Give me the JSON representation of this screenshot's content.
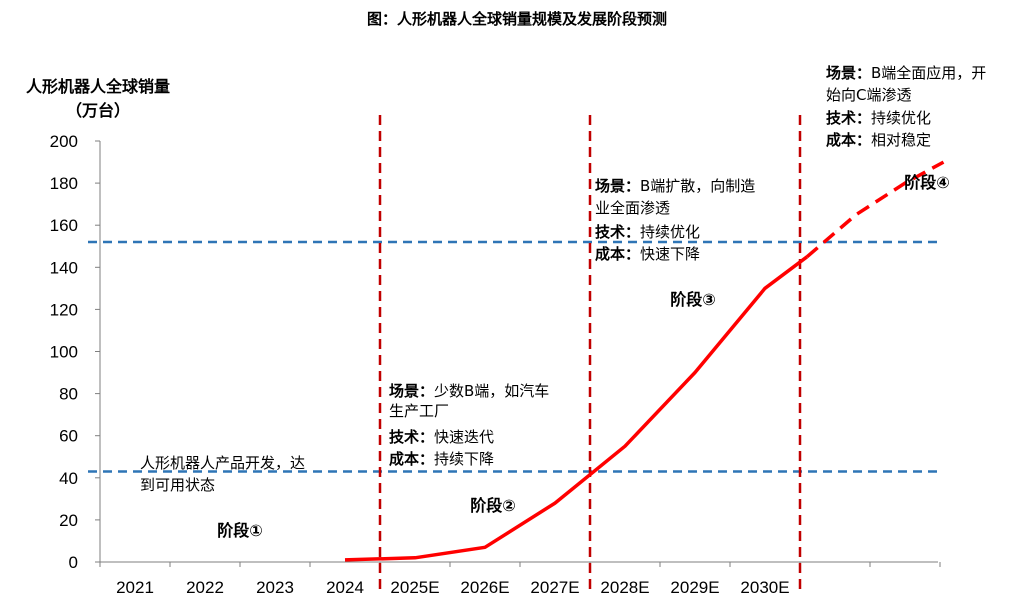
{
  "chart_data": {
    "type": "line",
    "title": "图：人形机器人全球销量规模及发展阶段预测",
    "ylabel_line1": "人形机器人全球销量",
    "ylabel_line2": "（万台）",
    "ylim": [
      0,
      200
    ],
    "yticks": [
      0,
      20,
      40,
      60,
      80,
      100,
      120,
      140,
      160,
      180,
      200
    ],
    "categories": [
      "2021",
      "2022",
      "2023",
      "2024",
      "2025E",
      "2026E",
      "2027E",
      "2028E",
      "2029E",
      "2030E"
    ],
    "series": [
      {
        "solid": {
          "x": [
            3.0,
            4.0,
            5.0,
            6.0,
            7.0,
            8.0,
            9.0,
            9.6
          ],
          "y": [
            1,
            2,
            7,
            28,
            55,
            90,
            130,
            145
          ]
        },
        "dashed": {
          "x": [
            9.6,
            10.3,
            11.0,
            11.55
          ],
          "y": [
            145,
            165,
            180,
            190
          ]
        }
      }
    ],
    "hlines": [
      {
        "value": 43,
        "color": "#2e75b6"
      },
      {
        "value": 152,
        "color": "#2e75b6"
      }
    ],
    "vlines": [
      {
        "x": 3.5,
        "color": "#c00000"
      },
      {
        "x": 6.5,
        "color": "#c00000"
      },
      {
        "x": 9.5,
        "color": "#c00000"
      }
    ],
    "line_color": "#ff0000",
    "stages": [
      "阶段①",
      "阶段②",
      "阶段③",
      "阶段④"
    ],
    "annotations": {
      "stage1_note": [
        "人形机器人产品开发，达",
        "到可用状态"
      ],
      "stage2": {
        "scene_key": "场景：",
        "scene": "少数B端，如汽车",
        "scene2": "生产工厂",
        "tech_key": "技术：",
        "tech": "快速迭代",
        "cost_key": "成本：",
        "cost": "持续下降"
      },
      "stage3": {
        "scene_key": "场景：",
        "scene": "B端扩散，向制造",
        "scene2": "业全面渗透",
        "tech_key": "技术：",
        "tech": "持续优化",
        "cost_key": "成本：",
        "cost": "快速下降"
      },
      "stage4": {
        "scene_key": "场景：",
        "scene": "B端全面应用，开",
        "scene2": "始向C端渗透",
        "tech_key": "技术：",
        "tech": "持续优化",
        "cost_key": "成本：",
        "cost": "相对稳定"
      }
    }
  }
}
